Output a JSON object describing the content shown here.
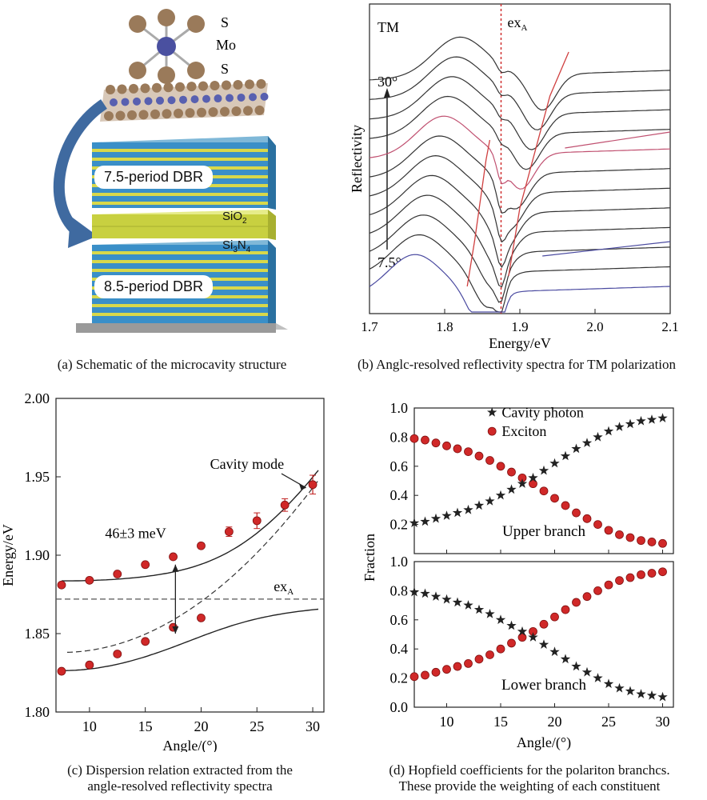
{
  "figure": {
    "captions": {
      "a": "(a) Schematic of the microcavity structure",
      "b": "(b) Anglc-resolved reflectivity spectra for TM polarization",
      "c_line1": "(c) Dispersion relation extracted from the",
      "c_line2": "angle-resolved reflectivity spectra",
      "d_line1": "(d) Hopfield coefficients for the polariton branchcs.",
      "d_line2": "These provide the weighting of each constituent"
    }
  },
  "panel_a": {
    "atom_labels": [
      "S",
      "Mo",
      "S"
    ],
    "dbr_top": "7.5-period DBR",
    "dbr_bottom": "8.5-period DBR",
    "sio2": "SiO",
    "sio2_sub": "2",
    "si3n4": "Si",
    "si3n4_sub1": "3",
    "si3n4_n": "N",
    "si3n4_sub2": "4",
    "colors": {
      "dbr_blue": "#3a8fc8",
      "dbr_yellow": "#d8d84a",
      "arrow": "#3f6aa0",
      "cavity": "#c8d040"
    }
  },
  "chart_data": [
    {
      "id": "b",
      "type": "line",
      "title": "",
      "mode_label": "TM",
      "exciton_label": "ex",
      "exciton_sub": "A",
      "exciton_energy": 1.875,
      "xlabel": "Energy/eV",
      "ylabel": "Reflectivity",
      "xlim": [
        1.7,
        2.1
      ],
      "xticks": [
        "1.7",
        "1.8",
        "1.9",
        "2.0",
        "2.1"
      ],
      "angle_top": "30°",
      "angle_bottom": "7.5°",
      "n_spectra": 12
    },
    {
      "id": "c",
      "type": "scatter",
      "xlabel": "Angle/(°)",
      "ylabel": "Energy/eV",
      "xlim": [
        7,
        31
      ],
      "ylim": [
        1.8,
        2.0
      ],
      "xticks": [
        "10",
        "15",
        "20",
        "25",
        "30"
      ],
      "yticks": [
        "1.80",
        "1.85",
        "1.90",
        "1.95",
        "2.00"
      ],
      "exciton_energy": 1.872,
      "exciton_label": "ex",
      "exciton_sub": "A",
      "cavity_label": "Cavity mode",
      "rabi_label": "46±3 meV",
      "upper": {
        "x": [
          7.5,
          10,
          12.5,
          15,
          17.5,
          20,
          22.5,
          25,
          27.5,
          30
        ],
        "y": [
          1.881,
          1.884,
          1.888,
          1.894,
          1.899,
          1.906,
          1.915,
          1.922,
          1.932,
          1.945
        ],
        "err": [
          0,
          0,
          0,
          0,
          0,
          0,
          0.003,
          0.005,
          0.004,
          0.006
        ]
      },
      "lower": {
        "x": [
          7.5,
          10,
          12.5,
          15,
          17.5,
          20
        ],
        "y": [
          1.826,
          1.83,
          1.837,
          1.845,
          1.854,
          1.86
        ]
      }
    },
    {
      "id": "d",
      "type": "scatter",
      "xlabel": "Angle/(°)",
      "ylabel": "Fraction",
      "xlim": [
        7,
        31
      ],
      "ylim": [
        0,
        1
      ],
      "xticks": [
        "10",
        "15",
        "20",
        "25",
        "30"
      ],
      "yticks": [
        "0.0",
        "0.2",
        "0.4",
        "0.6",
        "0.8",
        "1.0"
      ],
      "legend": [
        "Cavity photon",
        "Exciton"
      ],
      "upper_label": "Upper branch",
      "lower_label": "Lower branch",
      "angles": [
        7,
        8,
        9,
        10,
        11,
        12,
        13,
        14,
        15,
        16,
        17,
        18,
        19,
        20,
        21,
        22,
        23,
        24,
        25,
        26,
        27,
        28,
        29,
        30
      ],
      "upper_photon": [
        0.21,
        0.22,
        0.24,
        0.26,
        0.28,
        0.3,
        0.33,
        0.36,
        0.4,
        0.44,
        0.48,
        0.52,
        0.57,
        0.62,
        0.67,
        0.72,
        0.76,
        0.8,
        0.84,
        0.87,
        0.89,
        0.91,
        0.92,
        0.93
      ],
      "upper_exciton": [
        0.79,
        0.78,
        0.76,
        0.74,
        0.72,
        0.7,
        0.67,
        0.64,
        0.6,
        0.56,
        0.52,
        0.48,
        0.43,
        0.38,
        0.33,
        0.28,
        0.24,
        0.2,
        0.16,
        0.13,
        0.11,
        0.09,
        0.08,
        0.07
      ],
      "lower_photon": [
        0.79,
        0.78,
        0.76,
        0.74,
        0.72,
        0.7,
        0.67,
        0.64,
        0.6,
        0.56,
        0.52,
        0.48,
        0.43,
        0.38,
        0.33,
        0.28,
        0.24,
        0.2,
        0.16,
        0.13,
        0.11,
        0.09,
        0.08,
        0.07
      ],
      "lower_exciton": [
        0.21,
        0.22,
        0.24,
        0.26,
        0.28,
        0.3,
        0.33,
        0.36,
        0.4,
        0.44,
        0.48,
        0.52,
        0.57,
        0.62,
        0.67,
        0.72,
        0.76,
        0.8,
        0.84,
        0.87,
        0.89,
        0.91,
        0.92,
        0.93
      ]
    }
  ]
}
